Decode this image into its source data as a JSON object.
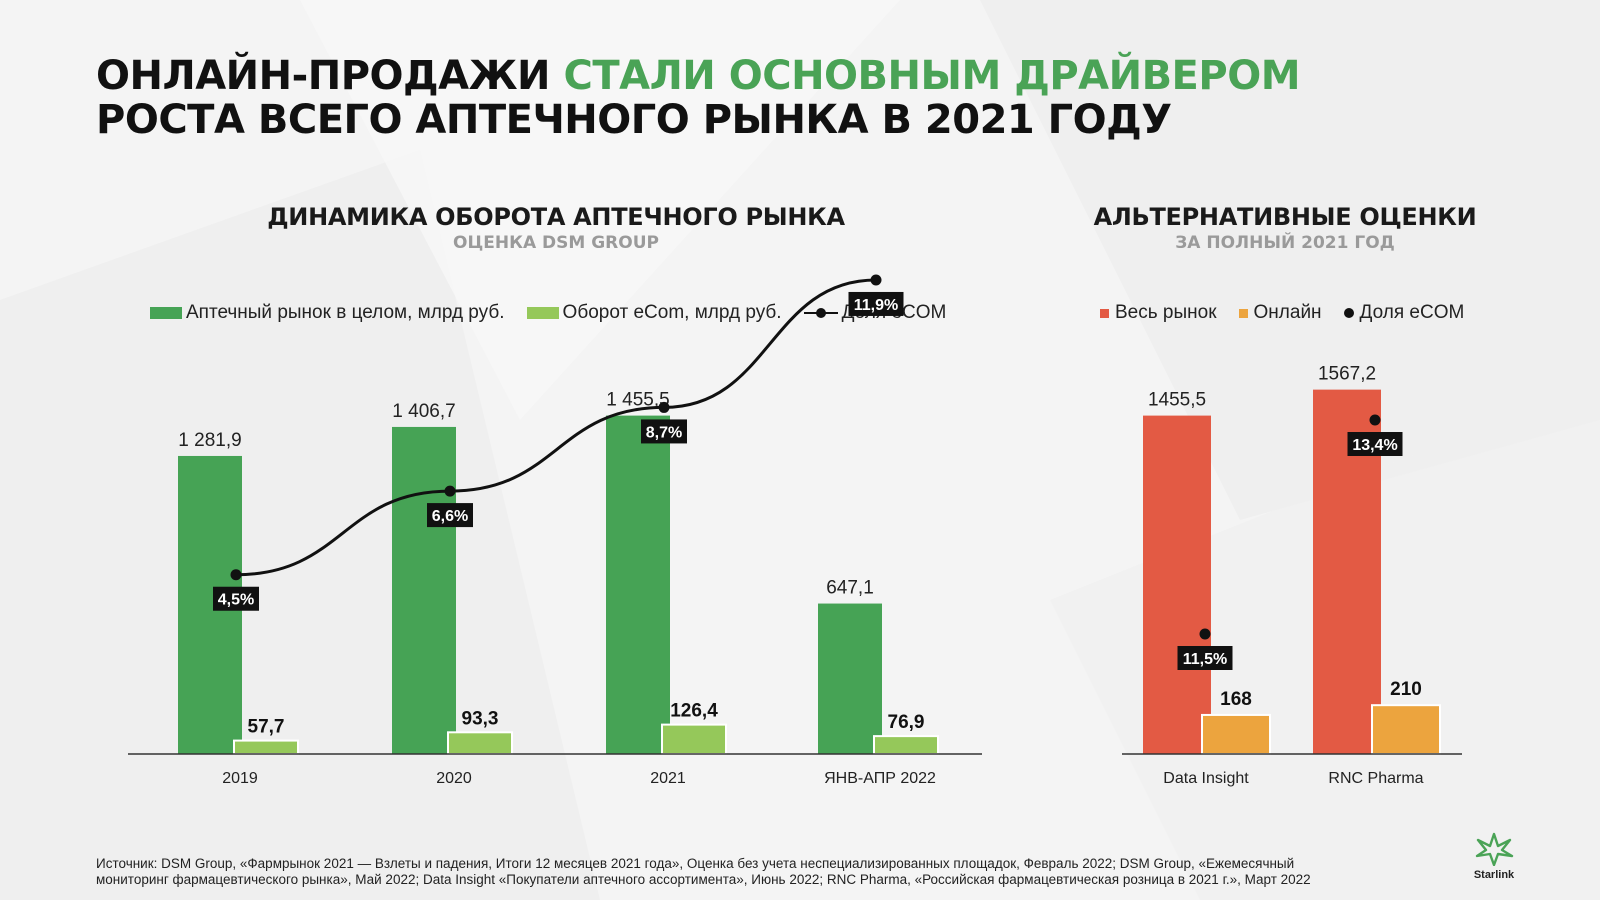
{
  "header": {
    "title_line1_dark": "ОНЛАЙН-ПРОДАЖИ",
    "title_line1_accent": "СТАЛИ ОСНОВНЫМ ДРАЙВЕРОМ",
    "title_line2": "РОСТА ВСЕГО АПТЕЧНОГО РЫНКА В 2021 ГОДУ"
  },
  "colors": {
    "accent": "#4aa356",
    "market": "#46a355",
    "ecom": "#95c85a",
    "total_market": "#e35a44",
    "online": "#eca43e",
    "line": "#111111"
  },
  "chart_data": [
    {
      "type": "bar",
      "title": "ДИНАМИКА ОБОРОТА АПТЕЧНОГО РЫНКА",
      "subtitle": "ОЦЕНКА DSM GROUP",
      "categories": [
        "2019",
        "2020",
        "2021",
        "ЯНВ-АПР 2022"
      ],
      "series": [
        {
          "name": "Аптечный рынок в целом, млрд руб.",
          "values": [
            1281.9,
            1406.7,
            1455.5,
            647.1
          ],
          "labels": [
            "1 281,9",
            "1 406,7",
            "1 455,5",
            "647,1"
          ]
        },
        {
          "name": "Оборот eCom, млрд руб.",
          "values": [
            57.7,
            93.3,
            126.4,
            76.9
          ],
          "labels": [
            "57,7",
            "93,3",
            "126,4",
            "76,9"
          ]
        },
        {
          "name": "Доля eCOM",
          "type": "line",
          "values": [
            4.5,
            6.6,
            8.7,
            11.9
          ],
          "labels": [
            "4,5%",
            "6,6%",
            "8,7%",
            "11,9%"
          ]
        }
      ],
      "ylim": [
        0,
        1600
      ],
      "legend_position": "top",
      "grid": false
    },
    {
      "type": "bar",
      "title": "АЛЬТЕРНАТИВНЫЕ ОЦЕНКИ",
      "subtitle": "ЗА ПОЛНЫЙ 2021 ГОД",
      "categories": [
        "Data Insight",
        "RNC Pharma"
      ],
      "series": [
        {
          "name": "Весь рынок",
          "values": [
            1455.5,
            1567.2
          ],
          "labels": [
            "1455,5",
            "1567,2"
          ]
        },
        {
          "name": "Онлайн",
          "values": [
            168,
            210
          ],
          "labels": [
            "168",
            "210"
          ]
        },
        {
          "name": "Доля eCOM",
          "type": "point",
          "values": [
            11.5,
            13.4
          ],
          "labels": [
            "11,5%",
            "13,4%"
          ]
        }
      ],
      "ylim": [
        0,
        1600
      ],
      "legend_position": "top",
      "grid": false
    }
  ],
  "footer": {
    "source_line1": "Источник: DSM Group, «Фармрынок 2021 — Взлеты и падения, Итоги 12 месяцев 2021 года», Оценка без учета неспециализированных площадок, Февраль 2022; DSM Group, «Ежемесячный",
    "source_line2": "мониторинг фармацевтического рынка», Май 2022; Data Insight «Покупатели аптечного ассортимента», Июнь 2022; RNC Pharma, «Российская фармацевтическая розница в 2021 г.», Март 2022",
    "logo_text": "Starlink",
    "logo_icon": "starlink-leaf-icon"
  }
}
